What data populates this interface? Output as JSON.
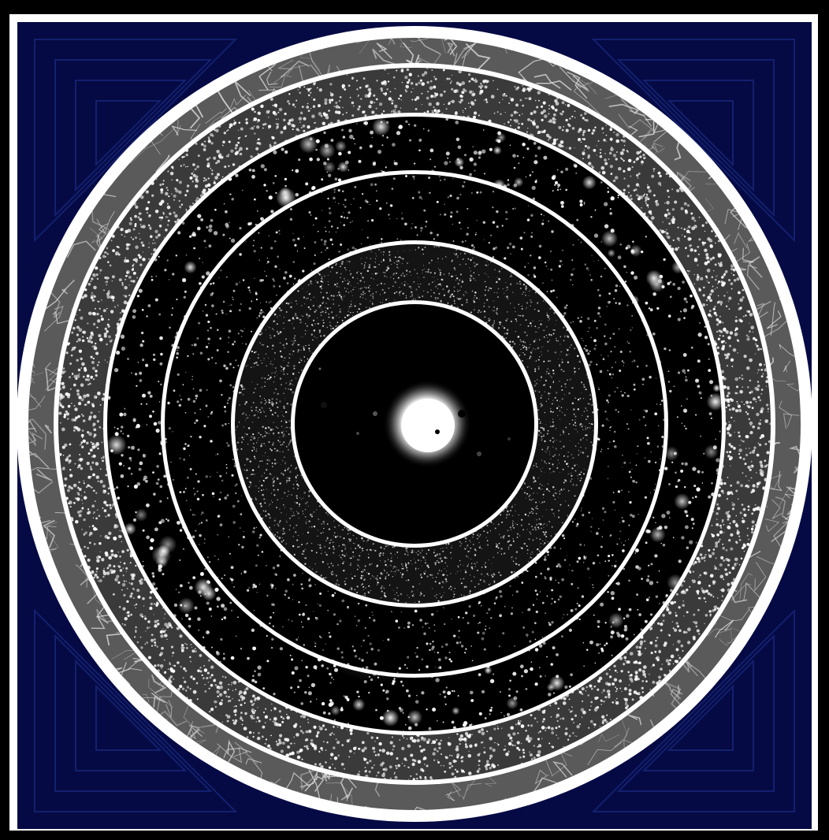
{
  "image": {
    "subject": "concentric-cosmic-scale-rings",
    "colors": {
      "frame": "#000000",
      "border": "#ffffff",
      "background_navy": "#050a44",
      "corner_lines": "#13206e",
      "ring_separator": "#ffffff",
      "space": "#000000",
      "star": "#ffffff"
    },
    "rings": [
      {
        "name": "cosmic-web",
        "texture": "filaments"
      },
      {
        "name": "galaxy-survey",
        "texture": "dense-dots"
      },
      {
        "name": "galaxy-cluster",
        "texture": "bright-blobs"
      },
      {
        "name": "deep-field",
        "texture": "small-galaxies"
      },
      {
        "name": "star-field",
        "texture": "fine-stars"
      },
      {
        "name": "planetary-system",
        "texture": "star-with-planets"
      }
    ]
  }
}
